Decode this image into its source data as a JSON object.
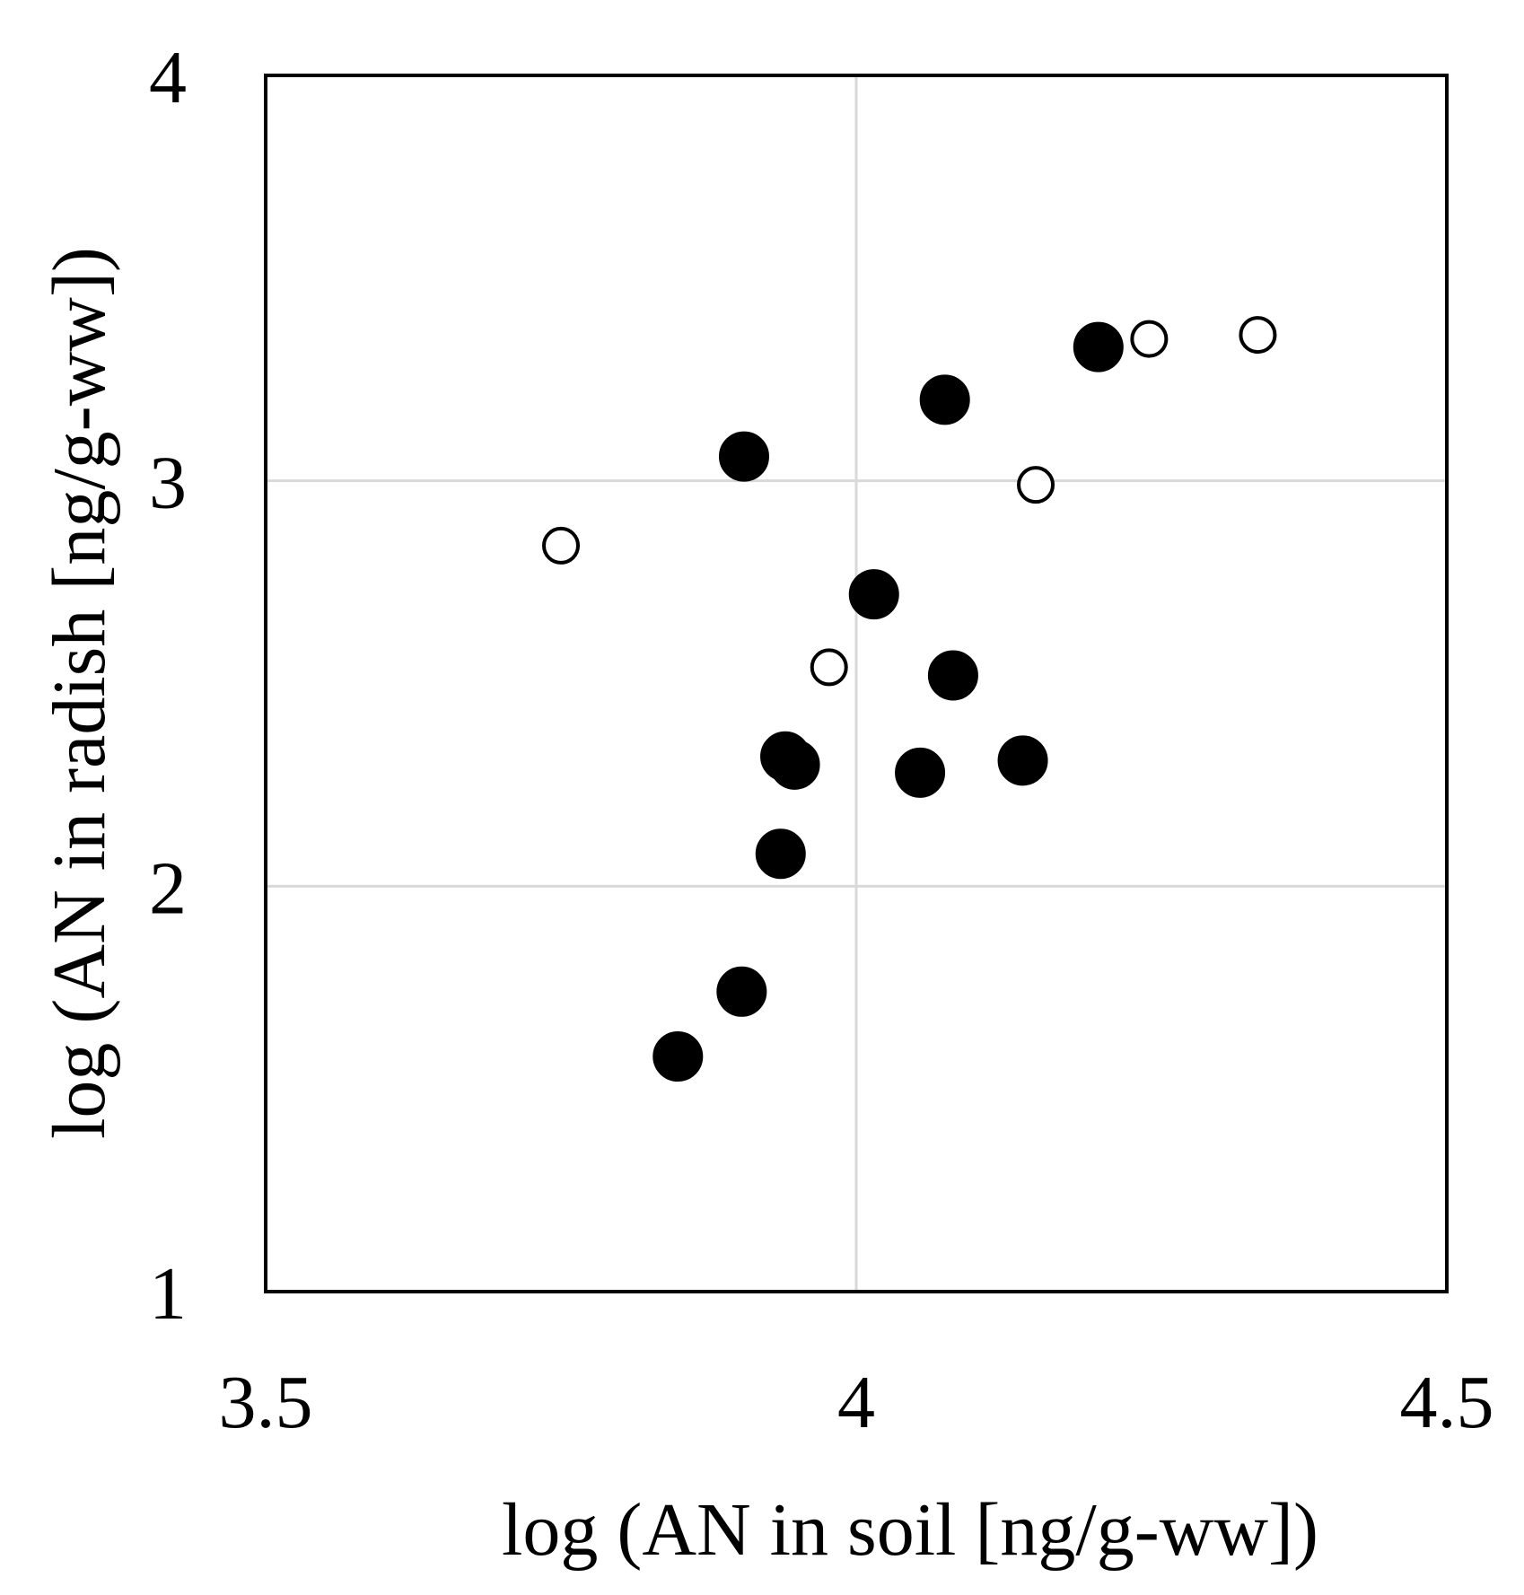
{
  "chart_data": {
    "type": "scatter",
    "xlabel": "log (AN in soil [ng/g-ww])",
    "ylabel": "log (AN in radish [ng/g-ww])",
    "xlim": [
      3.5,
      4.5
    ],
    "ylim": [
      1,
      4
    ],
    "x_ticks": [
      3.5,
      4,
      4.5
    ],
    "x_tick_labels": [
      "3.5",
      "4",
      "4.5"
    ],
    "y_ticks": [
      1,
      2,
      3,
      4
    ],
    "y_tick_labels": [
      "1",
      "2",
      "3",
      "4"
    ],
    "grid": true,
    "legend": "none",
    "series": [
      {
        "marker": "filled-circle",
        "color": "#000000",
        "points": [
          {
            "x": 4.205,
            "y": 3.33
          },
          {
            "x": 4.075,
            "y": 3.2
          },
          {
            "x": 3.905,
            "y": 3.06
          },
          {
            "x": 4.015,
            "y": 2.72
          },
          {
            "x": 4.082,
            "y": 2.52
          },
          {
            "x": 3.94,
            "y": 2.32
          },
          {
            "x": 3.948,
            "y": 2.3
          },
          {
            "x": 4.054,
            "y": 2.28
          },
          {
            "x": 4.141,
            "y": 2.31
          },
          {
            "x": 3.936,
            "y": 2.08
          },
          {
            "x": 3.903,
            "y": 1.74
          },
          {
            "x": 3.849,
            "y": 1.58
          }
        ]
      },
      {
        "marker": "open-circle",
        "color": "#000000",
        "points": [
          {
            "x": 4.248,
            "y": 3.35
          },
          {
            "x": 4.34,
            "y": 3.36
          },
          {
            "x": 4.152,
            "y": 2.99
          },
          {
            "x": 3.75,
            "y": 2.84
          },
          {
            "x": 3.977,
            "y": 2.54
          }
        ]
      }
    ]
  },
  "colors": {
    "axis": "#000000",
    "grid": "#d9d9d9",
    "marker": "#000000"
  }
}
